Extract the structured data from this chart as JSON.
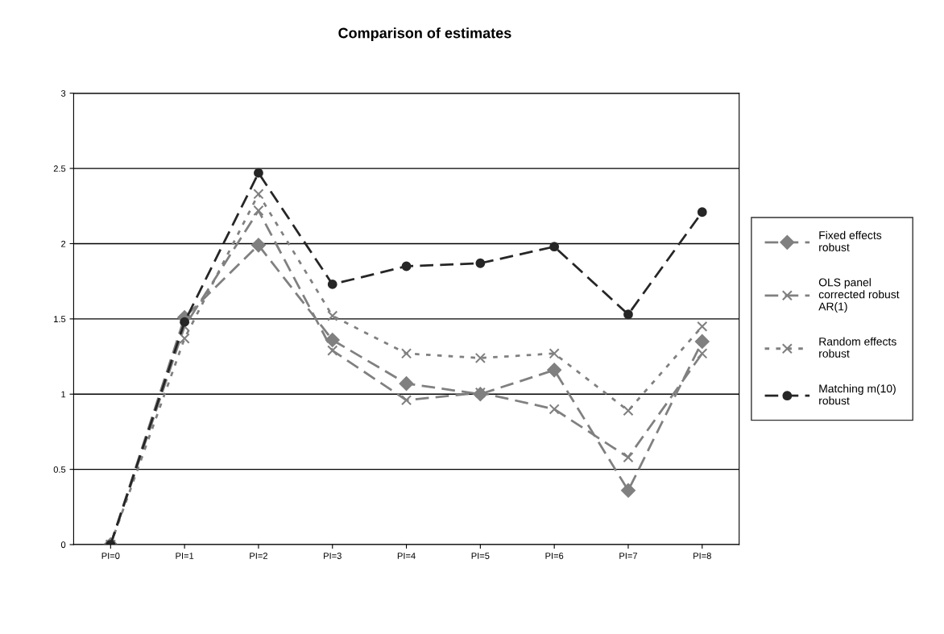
{
  "chart_data": {
    "type": "line",
    "title": "Comparison of estimates",
    "categories": [
      "PI=0",
      "PI=1",
      "PI=2",
      "PI=3",
      "PI=4",
      "PI=5",
      "PI=6",
      "PI=7",
      "PI=8"
    ],
    "series": [
      {
        "name": "Fixed effects robust",
        "color": "#808080",
        "marker": "diamond",
        "line_style": "dashed",
        "values": [
          0,
          1.51,
          1.99,
          1.36,
          1.07,
          1.0,
          1.16,
          0.36,
          1.35
        ]
      },
      {
        "name": "OLS panel corrected robust AR(1)",
        "color": "#808080",
        "marker": "cross",
        "line_style": "dashed",
        "values": [
          0,
          1.45,
          2.22,
          1.29,
          0.96,
          1.01,
          0.9,
          0.58,
          1.27
        ]
      },
      {
        "name": "Random effects robust",
        "color": "#808080",
        "marker": "cross",
        "line_style": "dotted",
        "values": [
          0,
          1.37,
          2.33,
          1.52,
          1.27,
          1.24,
          1.27,
          0.89,
          1.45
        ]
      },
      {
        "name": "Matching m(10) robust",
        "color": "#262626",
        "marker": "circle",
        "line_style": "dashed",
        "values": [
          0,
          1.48,
          2.47,
          1.73,
          1.85,
          1.87,
          1.98,
          1.53,
          2.21
        ]
      }
    ],
    "ylim": [
      0,
      3
    ],
    "yticks": [
      0,
      0.5,
      1,
      1.5,
      2,
      2.5,
      3
    ],
    "grid": "y",
    "legend": "right"
  }
}
